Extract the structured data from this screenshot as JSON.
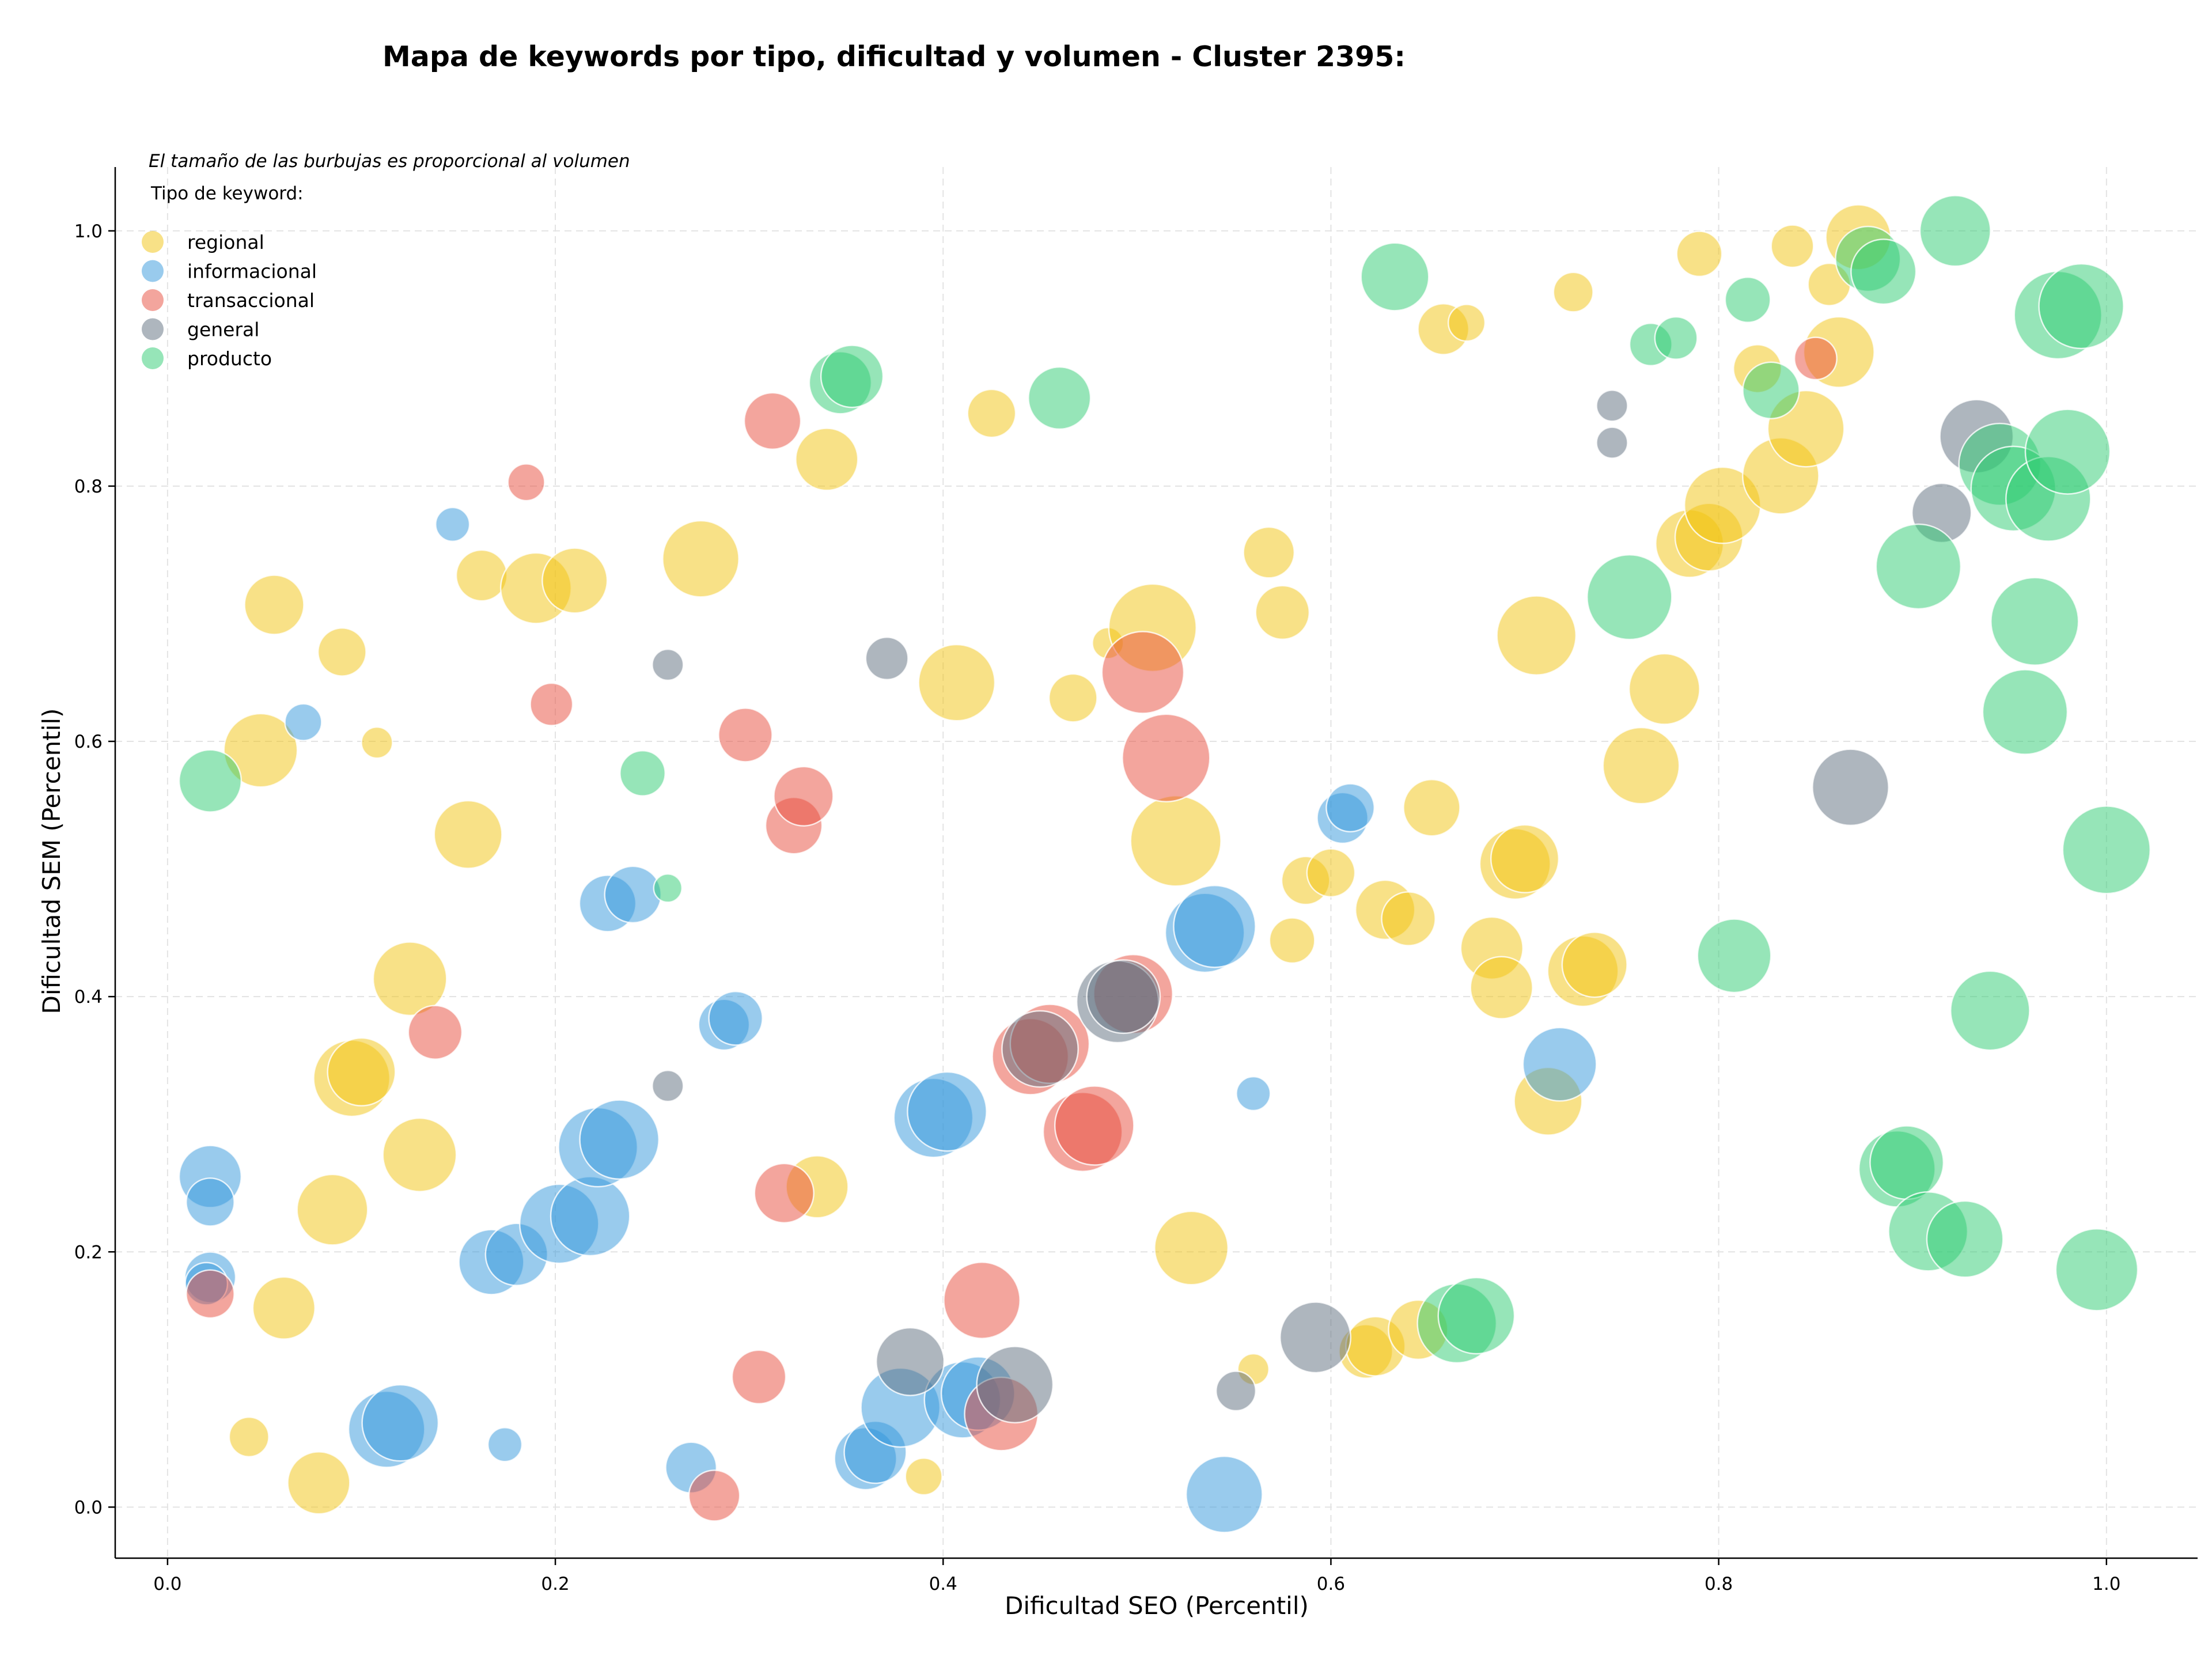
{
  "chart_data": {
    "type": "scatter",
    "title": "Mapa de keywords por tipo, dificultad y volumen - Cluster 2395:",
    "xlabel": "Dificultad SEO (Percentil)",
    "ylabel": "Dificultad SEM (Percentil)",
    "xlim": [
      -0.027,
      1.047
    ],
    "ylim": [
      -0.04,
      1.05
    ],
    "xticks": [
      "0.0",
      "0.2",
      "0.4",
      "0.6",
      "0.8",
      "1.0"
    ],
    "yticks": [
      "0.0",
      "0.2",
      "0.4",
      "0.6",
      "0.8",
      "1.0"
    ],
    "grid": true,
    "legend_position": "top-left",
    "size_note": "El tamaño de las burbujas es proporcional al volumen",
    "legend_title": "Tipo de keyword:",
    "series": [
      {
        "name": "regional",
        "color": "#F1C40F",
        "points": [
          [
            0.055,
            0.707,
            21
          ],
          [
            0.09,
            0.67,
            17
          ],
          [
            0.108,
            0.599,
            11
          ],
          [
            0.048,
            0.593,
            26
          ],
          [
            0.155,
            0.527,
            24
          ],
          [
            0.125,
            0.414,
            26
          ],
          [
            0.095,
            0.336,
            27
          ],
          [
            0.1,
            0.341,
            24
          ],
          [
            0.13,
            0.276,
            26
          ],
          [
            0.085,
            0.233,
            25
          ],
          [
            0.06,
            0.156,
            22
          ],
          [
            0.042,
            0.055,
            14
          ],
          [
            0.078,
            0.019,
            22
          ],
          [
            0.162,
            0.73,
            18
          ],
          [
            0.19,
            0.72,
            25
          ],
          [
            0.21,
            0.726,
            23
          ],
          [
            0.275,
            0.743,
            27
          ],
          [
            0.34,
            0.821,
            22
          ],
          [
            0.425,
            0.857,
            17
          ],
          [
            0.407,
            0.646,
            27
          ],
          [
            0.335,
            0.251,
            22
          ],
          [
            0.39,
            0.024,
            13
          ],
          [
            0.485,
            0.677,
            11
          ],
          [
            0.467,
            0.634,
            17
          ],
          [
            0.508,
            0.689,
            31
          ],
          [
            0.52,
            0.522,
            32
          ],
          [
            0.528,
            0.203,
            26
          ],
          [
            0.56,
            0.108,
            11
          ],
          [
            0.568,
            0.748,
            18
          ],
          [
            0.575,
            0.701,
            19
          ],
          [
            0.58,
            0.444,
            16
          ],
          [
            0.587,
            0.491,
            17
          ],
          [
            0.6,
            0.497,
            17
          ],
          [
            0.628,
            0.468,
            21
          ],
          [
            0.64,
            0.461,
            19
          ],
          [
            0.618,
            0.122,
            19
          ],
          [
            0.623,
            0.126,
            21
          ],
          [
            0.645,
            0.139,
            21
          ],
          [
            0.658,
            0.923,
            18
          ],
          [
            0.67,
            0.928,
            13
          ],
          [
            0.652,
            0.548,
            20
          ],
          [
            0.683,
            0.438,
            22
          ],
          [
            0.688,
            0.407,
            22
          ],
          [
            0.695,
            0.504,
            25
          ],
          [
            0.7,
            0.508,
            24
          ],
          [
            0.706,
            0.683,
            28
          ],
          [
            0.712,
            0.318,
            24
          ],
          [
            0.73,
            0.42,
            25
          ],
          [
            0.736,
            0.425,
            23
          ],
          [
            0.725,
            0.952,
            14
          ],
          [
            0.76,
            0.581,
            27
          ],
          [
            0.772,
            0.641,
            25
          ],
          [
            0.79,
            0.982,
            16
          ],
          [
            0.785,
            0.755,
            24
          ],
          [
            0.795,
            0.76,
            24
          ],
          [
            0.802,
            0.785,
            27
          ],
          [
            0.82,
            0.892,
            17
          ],
          [
            0.832,
            0.808,
            27
          ],
          [
            0.838,
            0.988,
            15
          ],
          [
            0.845,
            0.845,
            27
          ],
          [
            0.857,
            0.958,
            15
          ],
          [
            0.862,
            0.905,
            25
          ],
          [
            0.872,
            0.995,
            23
          ]
        ]
      },
      {
        "name": "informacional",
        "color": "#3498DB",
        "points": [
          [
            0.147,
            0.77,
            12
          ],
          [
            0.07,
            0.615,
            13
          ],
          [
            0.022,
            0.259,
            22
          ],
          [
            0.022,
            0.239,
            17
          ],
          [
            0.022,
            0.18,
            18
          ],
          [
            0.02,
            0.175,
            15
          ],
          [
            0.113,
            0.061,
            27
          ],
          [
            0.12,
            0.066,
            27
          ],
          [
            0.174,
            0.049,
            12
          ],
          [
            0.167,
            0.192,
            23
          ],
          [
            0.18,
            0.198,
            22
          ],
          [
            0.202,
            0.222,
            28
          ],
          [
            0.218,
            0.228,
            28
          ],
          [
            0.222,
            0.282,
            28
          ],
          [
            0.233,
            0.288,
            28
          ],
          [
            0.227,
            0.473,
            20
          ],
          [
            0.24,
            0.48,
            20
          ],
          [
            0.287,
            0.378,
            18
          ],
          [
            0.293,
            0.383,
            19
          ],
          [
            0.27,
            0.031,
            18
          ],
          [
            0.36,
            0.038,
            22
          ],
          [
            0.365,
            0.043,
            22
          ],
          [
            0.378,
            0.078,
            28
          ],
          [
            0.395,
            0.305,
            28
          ],
          [
            0.402,
            0.31,
            28
          ],
          [
            0.41,
            0.084,
            27
          ],
          [
            0.418,
            0.089,
            26
          ],
          [
            0.535,
            0.45,
            28
          ],
          [
            0.54,
            0.455,
            29
          ],
          [
            0.545,
            0.01,
            27
          ],
          [
            0.56,
            0.324,
            12
          ],
          [
            0.606,
            0.54,
            18
          ],
          [
            0.61,
            0.548,
            17
          ],
          [
            0.718,
            0.347,
            26
          ]
        ]
      },
      {
        "name": "transaccional",
        "color": "#E74C3C",
        "points": [
          [
            0.185,
            0.803,
            13
          ],
          [
            0.198,
            0.629,
            15
          ],
          [
            0.138,
            0.372,
            19
          ],
          [
            0.022,
            0.167,
            17
          ],
          [
            0.312,
            0.851,
            20
          ],
          [
            0.298,
            0.605,
            19
          ],
          [
            0.323,
            0.534,
            20
          ],
          [
            0.328,
            0.557,
            21
          ],
          [
            0.318,
            0.246,
            21
          ],
          [
            0.305,
            0.102,
            19
          ],
          [
            0.282,
            0.009,
            18
          ],
          [
            0.42,
            0.162,
            27
          ],
          [
            0.43,
            0.073,
            26
          ],
          [
            0.445,
            0.353,
            27
          ],
          [
            0.455,
            0.363,
            28
          ],
          [
            0.472,
            0.294,
            28
          ],
          [
            0.478,
            0.299,
            28
          ],
          [
            0.498,
            0.402,
            28
          ],
          [
            0.503,
            0.654,
            29
          ],
          [
            0.515,
            0.587,
            31
          ],
          [
            0.85,
            0.9,
            15
          ]
        ]
      },
      {
        "name": "general",
        "color": "#5D6D7E",
        "points": [
          [
            0.258,
            0.66,
            11
          ],
          [
            0.258,
            0.33,
            11
          ],
          [
            0.371,
            0.665,
            15
          ],
          [
            0.383,
            0.114,
            24
          ],
          [
            0.437,
            0.096,
            27
          ],
          [
            0.45,
            0.359,
            27
          ],
          [
            0.49,
            0.396,
            29
          ],
          [
            0.493,
            0.4,
            26
          ],
          [
            0.551,
            0.091,
            14
          ],
          [
            0.592,
            0.133,
            25
          ],
          [
            0.745,
            0.863,
            11
          ],
          [
            0.745,
            0.834,
            11
          ],
          [
            0.868,
            0.564,
            27
          ],
          [
            0.915,
            0.779,
            21
          ],
          [
            0.933,
            0.839,
            26
          ]
        ]
      },
      {
        "name": "producto",
        "color": "#2ECC71",
        "points": [
          [
            0.022,
            0.569,
            22
          ],
          [
            0.245,
            0.575,
            16
          ],
          [
            0.258,
            0.485,
            10
          ],
          [
            0.347,
            0.881,
            22
          ],
          [
            0.353,
            0.886,
            22
          ],
          [
            0.46,
            0.869,
            22
          ],
          [
            0.633,
            0.964,
            24
          ],
          [
            0.665,
            0.144,
            28
          ],
          [
            0.675,
            0.15,
            27
          ],
          [
            0.754,
            0.713,
            30
          ],
          [
            0.765,
            0.911,
            15
          ],
          [
            0.778,
            0.916,
            15
          ],
          [
            0.808,
            0.432,
            26
          ],
          [
            0.815,
            0.946,
            16
          ],
          [
            0.827,
            0.875,
            20
          ],
          [
            0.877,
            0.978,
            23
          ],
          [
            0.885,
            0.968,
            23
          ],
          [
            0.892,
            0.265,
            27
          ],
          [
            0.897,
            0.27,
            26
          ],
          [
            0.903,
            0.737,
            30
          ],
          [
            0.908,
            0.216,
            28
          ],
          [
            0.922,
            1.0,
            25
          ],
          [
            0.927,
            0.21,
            27
          ],
          [
            0.94,
            0.389,
            28
          ],
          [
            0.945,
            0.817,
            29
          ],
          [
            0.952,
            0.798,
            30
          ],
          [
            0.958,
            0.623,
            30
          ],
          [
            0.963,
            0.694,
            31
          ],
          [
            0.97,
            0.79,
            30
          ],
          [
            0.975,
            0.934,
            31
          ],
          [
            0.98,
            0.827,
            30
          ],
          [
            0.987,
            0.941,
            30
          ],
          [
            0.995,
            0.186,
            29
          ],
          [
            1.0,
            0.515,
            31
          ]
        ]
      }
    ]
  }
}
